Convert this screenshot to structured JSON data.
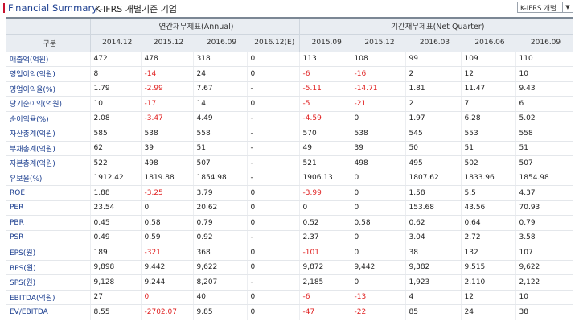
{
  "title": "Financial Summary",
  "subtitle": "K-IFRS 개별기준 기업",
  "select_value": "K-IFRS 개별",
  "group_annual": "연간재무제표(Annual)",
  "group_quarter": "기간재무제표(Net Quarter)",
  "header_label": "구분",
  "periods": [
    "2014.12",
    "2015.12",
    "2016.09",
    "2016.12(E)",
    "2015.09",
    "2015.12",
    "2016.03",
    "2016.06",
    "2016.09"
  ],
  "rows": [
    {
      "label": "매출액(억원)",
      "values": [
        "472",
        "478",
        "318",
        "0",
        "113",
        "108",
        "99",
        "109",
        "110"
      ]
    },
    {
      "label": "영업이익(억원)",
      "values": [
        "8",
        "-14",
        "24",
        "0",
        "-6",
        "-16",
        "2",
        "12",
        "10"
      ]
    },
    {
      "label": "영업이익율(%)",
      "values": [
        "1.79",
        "-2.99",
        "7.67",
        "-",
        "-5.11",
        "-14.71",
        "1.81",
        "11.47",
        "9.43"
      ]
    },
    {
      "label": "당기순이익(억원)",
      "values": [
        "10",
        "-17",
        "14",
        "0",
        "-5",
        "-21",
        "2",
        "7",
        "6"
      ]
    },
    {
      "label": "순이익율(%)",
      "values": [
        "2.08",
        "-3.47",
        "4.49",
        "-",
        "-4.59",
        "0",
        "1.97",
        "6.28",
        "5.02"
      ]
    },
    {
      "label": "자산총계(억원)",
      "values": [
        "585",
        "538",
        "558",
        "-",
        "570",
        "538",
        "545",
        "553",
        "558"
      ]
    },
    {
      "label": "부채총계(억원)",
      "values": [
        "62",
        "39",
        "51",
        "-",
        "49",
        "39",
        "50",
        "51",
        "51"
      ]
    },
    {
      "label": "자본총계(억원)",
      "values": [
        "522",
        "498",
        "507",
        "-",
        "521",
        "498",
        "495",
        "502",
        "507"
      ]
    },
    {
      "label": "유보율(%)",
      "values": [
        "1912.42",
        "1819.88",
        "1854.98",
        "-",
        "1906.13",
        "0",
        "1807.62",
        "1833.96",
        "1854.98"
      ]
    },
    {
      "label": "ROE",
      "values": [
        "1.88",
        "-3.25",
        "3.79",
        "0",
        "-3.99",
        "0",
        "1.58",
        "5.5",
        "4.37"
      ]
    },
    {
      "label": "PER",
      "values": [
        "23.54",
        "0",
        "20.62",
        "0",
        "0",
        "0",
        "153.68",
        "43.56",
        "70.93"
      ]
    },
    {
      "label": "PBR",
      "values": [
        "0.45",
        "0.58",
        "0.79",
        "0",
        "0.52",
        "0.58",
        "0.62",
        "0.64",
        "0.79"
      ]
    },
    {
      "label": "PSR",
      "values": [
        "0.49",
        "0.59",
        "0.92",
        "-",
        "2.37",
        "0",
        "3.04",
        "2.72",
        "3.58"
      ]
    },
    {
      "label": "EPS(원)",
      "values": [
        "189",
        "-321",
        "368",
        "0",
        "-101",
        "0",
        "38",
        "132",
        "107"
      ]
    },
    {
      "label": "BPS(원)",
      "values": [
        "9,898",
        "9,442",
        "9,622",
        "0",
        "9,872",
        "9,442",
        "9,382",
        "9,515",
        "9,622"
      ]
    },
    {
      "label": "SPS(원)",
      "values": [
        "9,128",
        "9,244",
        "8,207",
        "-",
        "2,185",
        "0",
        "1,923",
        "2,110",
        "2,122"
      ]
    },
    {
      "label": "EBITDA(억원)",
      "values": [
        "27",
        "0",
        "40",
        "0",
        "-6",
        "-13",
        "4",
        "12",
        "10"
      ]
    },
    {
      "label": "EV/EBITDA",
      "values": [
        "8.55",
        "-2702.07",
        "9.85",
        "0",
        "-47",
        "-22",
        "85",
        "24",
        "38"
      ]
    }
  ],
  "negative_cells": [
    [
      1,
      1
    ],
    [
      1,
      4
    ],
    [
      1,
      5
    ],
    [
      2,
      1
    ],
    [
      2,
      4
    ],
    [
      2,
      5
    ],
    [
      3,
      1
    ],
    [
      3,
      4
    ],
    [
      3,
      5
    ],
    [
      4,
      1
    ],
    [
      4,
      4
    ],
    [
      9,
      1
    ],
    [
      9,
      4
    ],
    [
      13,
      1
    ],
    [
      13,
      4
    ],
    [
      16,
      1
    ],
    [
      16,
      4
    ],
    [
      16,
      5
    ],
    [
      17,
      1
    ],
    [
      17,
      4
    ],
    [
      17,
      5
    ]
  ],
  "colors": {
    "label": "#1a3d8f",
    "negative": "#e02020",
    "header_bg": "#e9edf2"
  }
}
